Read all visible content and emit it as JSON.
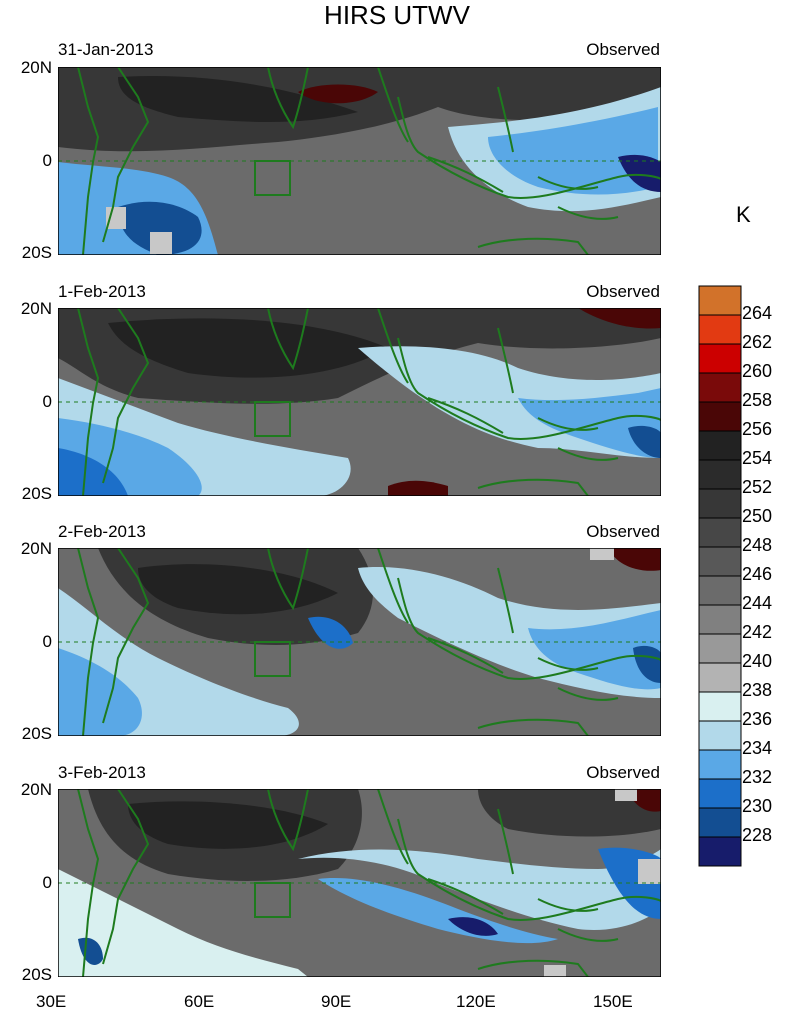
{
  "title": "HIRS UTWV",
  "panels": [
    {
      "date": "31-Jan-2013",
      "label": "Observed"
    },
    {
      "date": "1-Feb-2013",
      "label": "Observed"
    },
    {
      "date": "2-Feb-2013",
      "label": "Observed"
    },
    {
      "date": "3-Feb-2013",
      "label": "Observed"
    }
  ],
  "lat_labels": [
    "20N",
    "0",
    "20S"
  ],
  "lon_labels": [
    "30E",
    "60E",
    "90E",
    "120E",
    "150E"
  ],
  "colorbar": {
    "unit": "K",
    "labels": [
      "264",
      "262",
      "260",
      "258",
      "256",
      "254",
      "252",
      "250",
      "248",
      "246",
      "244",
      "242",
      "240",
      "238",
      "236",
      "234",
      "232",
      "230",
      "228"
    ],
    "colors": [
      "#d2722a",
      "#e23a12",
      "#cc0000",
      "#7a0a0a",
      "#4a0606",
      "#222222",
      "#2b2b2b",
      "#373737",
      "#474747",
      "#585858",
      "#6b6b6b",
      "#808080",
      "#999999",
      "#b3b3b3",
      "#d9f0f0",
      "#b2d9ea",
      "#5aa8e6",
      "#1c6fc9",
      "#134e92",
      "#171c6b"
    ]
  },
  "colors": {
    "coastline": "#1e7b1e",
    "box": "#1e7b1e"
  }
}
